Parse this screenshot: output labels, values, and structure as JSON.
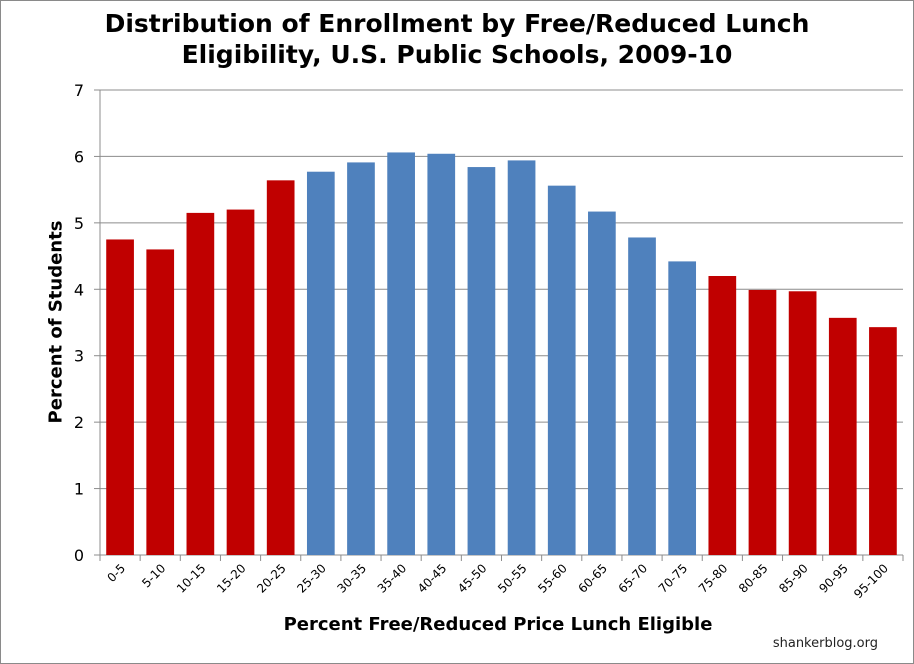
{
  "chart_data": {
    "type": "bar",
    "title_lines": [
      "Distribution of Enrollment by Free/Reduced Lunch",
      "Eligibility, U.S. Public Schools, 2009-10"
    ],
    "xlabel": "Percent Free/Reduced Price Lunch Eligible",
    "ylabel": "Percent of Students",
    "ylim": [
      0,
      7
    ],
    "yticks": [
      "0",
      "1",
      "2",
      "3",
      "4",
      "5",
      "6",
      "7"
    ],
    "grid": true,
    "categories": [
      "0-5",
      "5-10",
      "10-15",
      "15-20",
      "20-25",
      "25-30",
      "30-35",
      "35-40",
      "40-45",
      "45-50",
      "50-55",
      "55-60",
      "60-65",
      "65-70",
      "70-75",
      "75-80",
      "80-85",
      "85-90",
      "90-95",
      "95-100"
    ],
    "values": [
      4.75,
      4.6,
      5.15,
      5.2,
      5.64,
      5.77,
      5.91,
      6.06,
      6.04,
      5.84,
      5.94,
      5.56,
      5.17,
      4.78,
      4.42,
      4.2,
      3.99,
      3.97,
      3.57,
      3.43
    ],
    "bar_groups": [
      "red",
      "red",
      "red",
      "red",
      "red",
      "blue",
      "blue",
      "blue",
      "blue",
      "blue",
      "blue",
      "blue",
      "blue",
      "blue",
      "blue",
      "red",
      "red",
      "red",
      "red",
      "red"
    ],
    "colors": {
      "red": "#c00000",
      "blue": "#4f81bd",
      "grid": "#8c8c8c",
      "axis": "#8c8c8c"
    }
  },
  "footer": {
    "credit": "shankerblog.org"
  }
}
